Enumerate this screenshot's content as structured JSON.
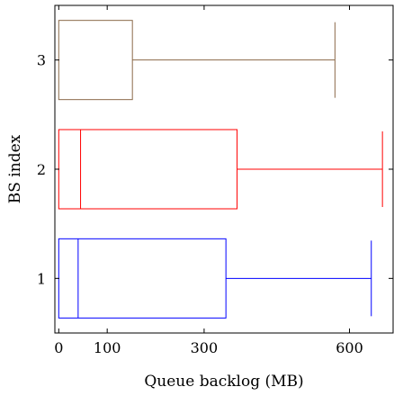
{
  "chart_data": {
    "type": "boxplot",
    "orientation": "horizontal",
    "xlabel": "Queue backlog (MB)",
    "ylabel": "BS index",
    "xlim": [
      -8,
      690
    ],
    "ylim": [
      0.5,
      3.5
    ],
    "xticks": [
      0,
      100,
      300,
      600
    ],
    "yticks": [
      1,
      2,
      3
    ],
    "grid": false,
    "series": [
      {
        "index": 1,
        "color": "#0000ff",
        "min": 0,
        "q1": 0,
        "median": 40,
        "q3": 345,
        "max": 645
      },
      {
        "index": 2,
        "color": "#ff0000",
        "min": 0,
        "q1": 0,
        "median": 45,
        "q3": 368,
        "max": 668
      },
      {
        "index": 3,
        "color": "#8b6a4a",
        "min": 0,
        "q1": 0,
        "median": 0,
        "q3": 152,
        "max": 570
      }
    ]
  }
}
